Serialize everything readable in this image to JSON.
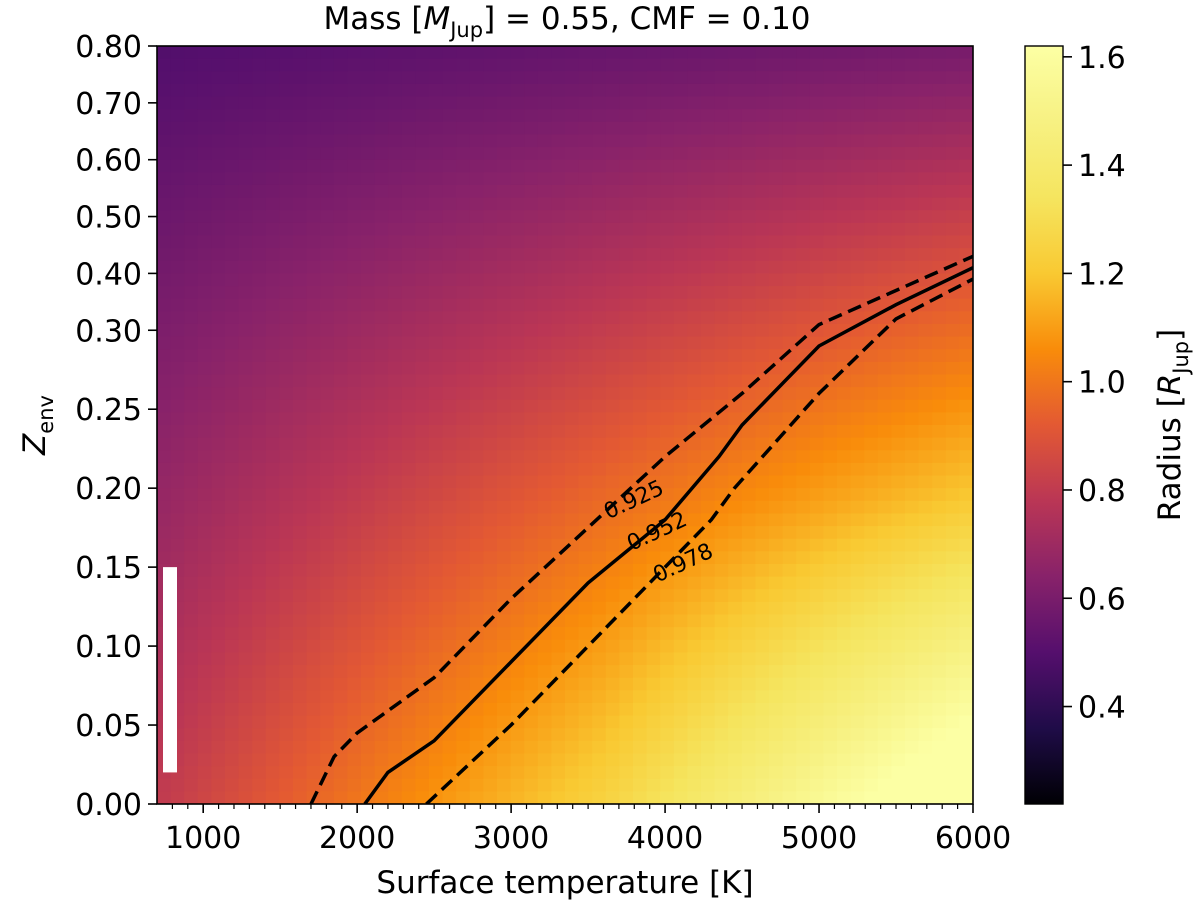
{
  "chart_data": {
    "type": "heatmap",
    "title": {
      "prefix": "Mass [",
      "symbol": "M",
      "subscript": "Jup",
      "suffix": "] = 0.55,  CMF = 0.10"
    },
    "xlabel": "Surface temperature [K]",
    "ylabel": {
      "symbol": "Z",
      "subscript": "env"
    },
    "xlim": [
      700,
      6000
    ],
    "ylim": [
      0.0,
      0.8
    ],
    "x_ticks": [
      {
        "value": 1000,
        "label": "1000"
      },
      {
        "value": 2000,
        "label": "2000"
      },
      {
        "value": 3000,
        "label": "3000"
      },
      {
        "value": 4000,
        "label": "4000"
      },
      {
        "value": 5000,
        "label": "5000"
      },
      {
        "value": 6000,
        "label": "6000"
      }
    ],
    "x_minor_step": 100,
    "y_ticks": [
      {
        "value": 0.0,
        "label": "0.00"
      },
      {
        "value": 0.05,
        "label": "0.05"
      },
      {
        "value": 0.1,
        "label": "0.10"
      },
      {
        "value": 0.15,
        "label": "0.15"
      },
      {
        "value": 0.2,
        "label": "0.20"
      },
      {
        "value": 0.25,
        "label": "0.25"
      },
      {
        "value": 0.3,
        "label": "0.30"
      },
      {
        "value": 0.4,
        "label": "0.40"
      },
      {
        "value": 0.5,
        "label": "0.50"
      },
      {
        "value": 0.6,
        "label": "0.60"
      },
      {
        "value": 0.7,
        "label": "0.70"
      },
      {
        "value": 0.8,
        "label": "0.80"
      }
    ],
    "radius_field": {
      "corners": {
        "top_left": 0.49,
        "top_right": 0.59,
        "bottom_left": 0.8,
        "bottom_right": 1.62
      },
      "blank_region": {
        "x_range": [
          700,
          800
        ],
        "y_range": [
          0.02,
          0.15
        ]
      }
    },
    "colorbar": {
      "label": {
        "prefix": "Radius [",
        "symbol": "R",
        "subscript": "Jup",
        "suffix": "]"
      },
      "vmin": 0.22,
      "vmax": 1.62,
      "colormap": "inferno",
      "ticks": [
        {
          "value": 0.4,
          "label": "0.4"
        },
        {
          "value": 0.6,
          "label": "0.6"
        },
        {
          "value": 0.8,
          "label": "0.8"
        },
        {
          "value": 1.0,
          "label": "1.0"
        },
        {
          "value": 1.2,
          "label": "1.2"
        },
        {
          "value": 1.4,
          "label": "1.4"
        },
        {
          "value": 1.6,
          "label": "1.6"
        }
      ]
    },
    "contours": [
      {
        "level": "0.925",
        "style": "dashed",
        "label_at": {
          "x": 3800,
          "y": 0.192
        },
        "points": [
          [
            1700,
            0.0
          ],
          [
            1850,
            0.03
          ],
          [
            2000,
            0.045
          ],
          [
            2500,
            0.08
          ],
          [
            3000,
            0.13
          ],
          [
            3500,
            0.175
          ],
          [
            4000,
            0.22
          ],
          [
            4500,
            0.26
          ],
          [
            5000,
            0.31
          ],
          [
            5500,
            0.37
          ],
          [
            6000,
            0.43
          ]
        ]
      },
      {
        "level": "0.952",
        "style": "solid",
        "label_at": {
          "x": 3950,
          "y": 0.172
        },
        "points": [
          [
            2050,
            0.0
          ],
          [
            2200,
            0.02
          ],
          [
            2500,
            0.04
          ],
          [
            3000,
            0.09
          ],
          [
            3500,
            0.14
          ],
          [
            4000,
            0.18
          ],
          [
            4350,
            0.22
          ],
          [
            4500,
            0.24
          ],
          [
            5000,
            0.29
          ],
          [
            5500,
            0.345
          ],
          [
            6000,
            0.41
          ]
        ]
      },
      {
        "level": "0.978",
        "style": "dashed",
        "label_at": {
          "x": 4120,
          "y": 0.152
        },
        "points": [
          [
            2450,
            0.0
          ],
          [
            3000,
            0.05
          ],
          [
            3500,
            0.1
          ],
          [
            4000,
            0.15
          ],
          [
            4300,
            0.18
          ],
          [
            4450,
            0.2
          ],
          [
            5000,
            0.26
          ],
          [
            5500,
            0.32
          ],
          [
            6000,
            0.39
          ]
        ]
      }
    ]
  }
}
